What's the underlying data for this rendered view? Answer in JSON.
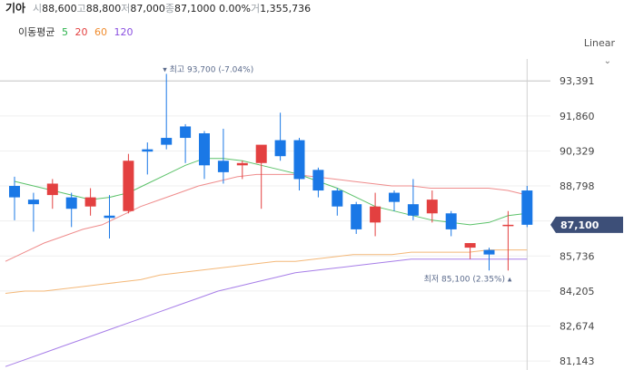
{
  "header": {
    "stock_name": "기아",
    "open_label": "시",
    "open": "88,600",
    "high_label": "고",
    "high": "88,800",
    "low_label": "저",
    "low": "87,000",
    "close_label": "종",
    "close": "87,100",
    "change": "0 0.00%",
    "volume_label": "거",
    "volume": "1,355,736"
  },
  "ma_legend": {
    "title": "이동평균",
    "items": [
      {
        "label": "5",
        "color": "#2bb24c"
      },
      {
        "label": "20",
        "color": "#e34040"
      },
      {
        "label": "60",
        "color": "#f08c2e"
      },
      {
        "label": "120",
        "color": "#8a4fe0"
      }
    ]
  },
  "scale_selector": {
    "label": "Linear",
    "icon": "chevron-down-icon"
  },
  "colors": {
    "up": "#e34040",
    "down": "#1a78e6",
    "ma5": "#5cc26a",
    "ma20": "#ef8c8c",
    "ma60": "#f4b878",
    "ma120": "#a77ee8",
    "current_tag": "#3d4f78"
  },
  "chart_data": {
    "type": "candlestick",
    "ylim": [
      80750,
      94550
    ],
    "yticks": [
      "93,391",
      "91,860",
      "90,329",
      "88,798",
      "87,267",
      "85,736",
      "84,205",
      "82,674",
      "81,143"
    ],
    "current_price_label": "87,100",
    "reference_line": 93391,
    "max_annotation": "최고 93,700 (-7.04%)",
    "min_annotation": "최저 85,100 (2.35%)",
    "candles": [
      {
        "o": 88800,
        "h": 89200,
        "l": 87300,
        "c": 88300
      },
      {
        "o": 88200,
        "h": 88500,
        "l": 86800,
        "c": 88000
      },
      {
        "o": 88400,
        "h": 89100,
        "l": 87800,
        "c": 88900
      },
      {
        "o": 88300,
        "h": 88500,
        "l": 87000,
        "c": 87800
      },
      {
        "o": 87900,
        "h": 88700,
        "l": 87500,
        "c": 88300
      },
      {
        "o": 87500,
        "h": 88400,
        "l": 86500,
        "c": 87400
      },
      {
        "o": 87700,
        "h": 90200,
        "l": 87600,
        "c": 89900
      },
      {
        "o": 90400,
        "h": 90700,
        "l": 89300,
        "c": 90300
      },
      {
        "o": 90900,
        "h": 93700,
        "l": 90400,
        "c": 90600
      },
      {
        "o": 91400,
        "h": 91500,
        "l": 89800,
        "c": 90900
      },
      {
        "o": 91100,
        "h": 91200,
        "l": 89100,
        "c": 89700
      },
      {
        "o": 89900,
        "h": 91300,
        "l": 88900,
        "c": 89400
      },
      {
        "o": 89700,
        "h": 89900,
        "l": 89100,
        "c": 89800
      },
      {
        "o": 89800,
        "h": 90500,
        "l": 87800,
        "c": 90600
      },
      {
        "o": 90800,
        "h": 92000,
        "l": 89900,
        "c": 90100
      },
      {
        "o": 90800,
        "h": 90900,
        "l": 88600,
        "c": 89100
      },
      {
        "o": 89500,
        "h": 89600,
        "l": 88300,
        "c": 88600
      },
      {
        "o": 88600,
        "h": 88700,
        "l": 87500,
        "c": 87900
      },
      {
        "o": 88000,
        "h": 88100,
        "l": 86700,
        "c": 86900
      },
      {
        "o": 87200,
        "h": 88500,
        "l": 86600,
        "c": 87900
      },
      {
        "o": 88500,
        "h": 88600,
        "l": 87700,
        "c": 88100
      },
      {
        "o": 88000,
        "h": 89100,
        "l": 87300,
        "c": 87500
      },
      {
        "o": 87600,
        "h": 88600,
        "l": 87200,
        "c": 88200
      },
      {
        "o": 87600,
        "h": 87700,
        "l": 86600,
        "c": 86900
      },
      {
        "o": 86100,
        "h": 86300,
        "l": 85600,
        "c": 86300
      },
      {
        "o": 86000,
        "h": 86100,
        "l": 85100,
        "c": 85800
      },
      {
        "o": 87100,
        "h": 87700,
        "l": 85100,
        "c": 87100
      },
      {
        "o": 88600,
        "h": 88800,
        "l": 87000,
        "c": 87100
      }
    ],
    "ma": {
      "ma5": [
        89000,
        88800,
        88600,
        88400,
        88200,
        88300,
        88500,
        88900,
        89300,
        89700,
        90000,
        90000,
        89900,
        89700,
        89500,
        89300,
        89000,
        88700,
        88300,
        87900,
        87700,
        87500,
        87300,
        87200,
        87100,
        87200,
        87500,
        87600
      ],
      "ma20": [
        85500,
        85900,
        86300,
        86600,
        86900,
        87100,
        87500,
        87900,
        88200,
        88500,
        88800,
        89000,
        89200,
        89300,
        89300,
        89300,
        89200,
        89100,
        89000,
        88900,
        88800,
        88800,
        88700,
        88700,
        88700,
        88700,
        88600,
        88400
      ],
      "ma60": [
        84100,
        84200,
        84200,
        84300,
        84400,
        84500,
        84600,
        84700,
        84900,
        85000,
        85100,
        85200,
        85300,
        85400,
        85500,
        85500,
        85600,
        85700,
        85800,
        85800,
        85800,
        85900,
        85900,
        85900,
        85900,
        86000,
        86000,
        86000
      ],
      "ma120": [
        80900,
        81200,
        81500,
        81800,
        82100,
        82400,
        82700,
        83000,
        83300,
        83600,
        83900,
        84200,
        84400,
        84600,
        84800,
        85000,
        85100,
        85200,
        85300,
        85400,
        85500,
        85600,
        85600,
        85600,
        85600,
        85600,
        85600,
        85600
      ]
    }
  }
}
